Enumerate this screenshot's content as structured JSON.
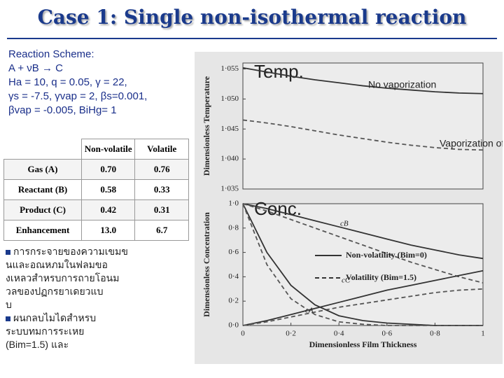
{
  "title": "Case 1: Single non-isothermal reaction",
  "scheme": {
    "heading": "Reaction Scheme:",
    "lines": [
      "A + νB → C",
      "Ha = 10, q =  0.05, γ = 22,",
      "γs = -7.5, γvap = 2, βs=0.001,",
      "βvap = -0.005,  BiHg= 1"
    ]
  },
  "table": {
    "header": [
      "Non-volatile",
      "Volatile"
    ],
    "rows": [
      [
        "Gas (A)",
        "0.70",
        "0.76"
      ],
      [
        "Reactant (B)",
        "0.58",
        "0.33"
      ],
      [
        "Product (C)",
        "0.42",
        "0.31"
      ],
      [
        "Enhancement",
        "13.0",
        "6.7"
      ]
    ]
  },
  "bullets": [
    [
      "การกระจายของความเขมข",
      "นและอณหภมในฟลมขอ",
      "งเหลวสำหรบการถายโอนม",
      "วลของปฏกรยาเดยวแบ",
      "บ"
    ],
    [
      "ผนกลบไมไดสำหรบ",
      "ระบบทมการระเหย",
      "(Bim=1.5) และ"
    ]
  ],
  "chart_data": [
    {
      "type": "line",
      "panel_label": "Temp.",
      "ylabel": "Dimensionless Temperature",
      "x": [
        0,
        0.1,
        0.2,
        0.3,
        0.4,
        0.5,
        0.6,
        0.7,
        0.8,
        0.9,
        1
      ],
      "xlim": [
        0,
        1
      ],
      "ylim": [
        1.035,
        1.056
      ],
      "yticks": [
        {
          "value": 1.035,
          "label": "1·035"
        },
        {
          "value": 1.04,
          "label": "1·040"
        },
        {
          "value": 1.045,
          "label": "1·045"
        },
        {
          "value": 1.05,
          "label": "1·050"
        },
        {
          "value": 1.055,
          "label": "1·055"
        }
      ],
      "series": [
        {
          "style": "solid",
          "color": "#333333",
          "values": [
            1.0552,
            1.0545,
            1.0538,
            1.0532,
            1.0527,
            1.0522,
            1.0518,
            1.0515,
            1.0512,
            1.051,
            1.0509
          ]
        },
        {
          "style": "dashed",
          "color": "#555555",
          "values": [
            1.0465,
            1.046,
            1.0454,
            1.0447,
            1.044,
            1.0434,
            1.0428,
            1.0423,
            1.0419,
            1.0416,
            1.0415
          ]
        }
      ],
      "annotations": [
        "No vaporization",
        "Vaporization of B"
      ]
    },
    {
      "type": "line",
      "panel_label": "Conc.",
      "ylabel": "Dimensionless Concentration",
      "xlabel": "Dimensionless Film Thickness",
      "x": [
        0,
        0.1,
        0.2,
        0.3,
        0.4,
        0.5,
        0.6,
        0.7,
        0.8,
        0.9,
        1
      ],
      "xlim": [
        0,
        1
      ],
      "ylim": [
        0,
        1
      ],
      "xticks": [
        0,
        {
          "value": 0.2,
          "label": "0·2"
        },
        {
          "value": 0.4,
          "label": "0·4"
        },
        {
          "value": 0.6,
          "label": "0·6"
        },
        {
          "value": 0.8,
          "label": "0·8"
        },
        1
      ],
      "yticks": [
        {
          "value": 0,
          "label": "0·0"
        },
        {
          "value": 0.2,
          "label": "0·2"
        },
        {
          "value": 0.4,
          "label": "0·4"
        },
        {
          "value": 0.6,
          "label": "0·6"
        },
        {
          "value": 0.8,
          "label": "0·8"
        },
        {
          "value": 1,
          "label": "1·0"
        }
      ],
      "series": [
        {
          "style": "solid",
          "color": "#333333",
          "values": [
            1,
            0.96,
            0.91,
            0.86,
            0.81,
            0.76,
            0.71,
            0.66,
            0.62,
            0.58,
            0.55
          ]
        },
        {
          "style": "dashed",
          "color": "#555555",
          "values": [
            1,
            0.94,
            0.87,
            0.8,
            0.73,
            0.66,
            0.59,
            0.52,
            0.46,
            0.4,
            0.35
          ]
        },
        {
          "style": "solid",
          "color": "#333333",
          "values": [
            0,
            0.04,
            0.09,
            0.14,
            0.19,
            0.24,
            0.29,
            0.33,
            0.37,
            0.41,
            0.45
          ]
        },
        {
          "style": "dashed",
          "color": "#555555",
          "values": [
            0,
            0.03,
            0.07,
            0.11,
            0.15,
            0.18,
            0.21,
            0.24,
            0.27,
            0.29,
            0.3
          ]
        },
        {
          "style": "solid",
          "color": "#333333",
          "values": [
            1,
            0.6,
            0.33,
            0.17,
            0.08,
            0.04,
            0.02,
            0.01,
            0,
            0,
            0
          ]
        },
        {
          "style": "dashed",
          "color": "#555555",
          "values": [
            1,
            0.5,
            0.22,
            0.09,
            0.03,
            0.01,
            0,
            0,
            0,
            0,
            0
          ]
        }
      ],
      "legend": [
        {
          "label": "Non-volatility (Bim=0)",
          "style": "solid"
        },
        {
          "label": "Volatility (Bim=1.5)",
          "style": "dashed"
        }
      ],
      "annotations": [
        "cB",
        "cC",
        "cA"
      ]
    }
  ]
}
